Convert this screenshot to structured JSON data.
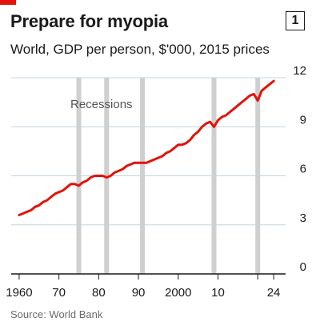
{
  "chart_number": "1",
  "source": "Source: World Bank",
  "colors": {
    "accent": "#e3120b",
    "line": "#e3120b",
    "recession_band": "#cfcfcf",
    "grid": "#c4d4dc",
    "axis": "#1a1a1a"
  },
  "chart_data": {
    "type": "line",
    "title": "Prepare for myopia",
    "subtitle": "World, GDP per person, $'000, 2015 prices",
    "xlabel": "",
    "ylabel": "",
    "xlim": [
      1958,
      2026
    ],
    "ylim": [
      0,
      12
    ],
    "grid": true,
    "y_axis_side": "right",
    "x_ticks": [
      1960,
      1970,
      1980,
      1990,
      2000,
      2010,
      2020,
      2024
    ],
    "x_tick_labels": [
      "1960",
      "70",
      "80",
      "90",
      "2000",
      "10",
      "",
      "24"
    ],
    "y_ticks": [
      0,
      3,
      6,
      9,
      12
    ],
    "y_tick_labels": [
      "0",
      "3",
      "6",
      "9",
      "12"
    ],
    "annotation": "Recessions",
    "recessions": [
      1975,
      1982,
      1991,
      2009,
      2020
    ],
    "series": [
      {
        "x": [
          1960,
          1961,
          1962,
          1963,
          1964,
          1965,
          1966,
          1967,
          1968,
          1969,
          1970,
          1971,
          1972,
          1973,
          1974,
          1975,
          1976,
          1977,
          1978,
          1979,
          1980,
          1981,
          1982,
          1983,
          1984,
          1985,
          1986,
          1987,
          1988,
          1989,
          1990,
          1991,
          1992,
          1993,
          1994,
          1995,
          1996,
          1997,
          1998,
          1999,
          2000,
          2001,
          2002,
          2003,
          2004,
          2005,
          2006,
          2007,
          2008,
          2009,
          2010,
          2011,
          2012,
          2013,
          2014,
          2015,
          2016,
          2017,
          2018,
          2019,
          2020,
          2021,
          2022,
          2023,
          2024
        ],
        "y": [
          3.6,
          3.7,
          3.8,
          3.9,
          4.1,
          4.2,
          4.4,
          4.5,
          4.7,
          4.9,
          5.0,
          5.1,
          5.3,
          5.5,
          5.5,
          5.4,
          5.6,
          5.7,
          5.9,
          6.0,
          6.0,
          6.0,
          5.9,
          6.0,
          6.2,
          6.3,
          6.4,
          6.6,
          6.7,
          6.8,
          6.8,
          6.8,
          6.8,
          6.9,
          7.0,
          7.1,
          7.2,
          7.4,
          7.5,
          7.7,
          7.9,
          7.9,
          8.0,
          8.2,
          8.5,
          8.7,
          9.0,
          9.2,
          9.3,
          9.0,
          9.4,
          9.6,
          9.7,
          9.9,
          10.1,
          10.3,
          10.5,
          10.7,
          10.9,
          11.0,
          10.6,
          11.2,
          11.4,
          11.6,
          11.8
        ]
      }
    ]
  }
}
